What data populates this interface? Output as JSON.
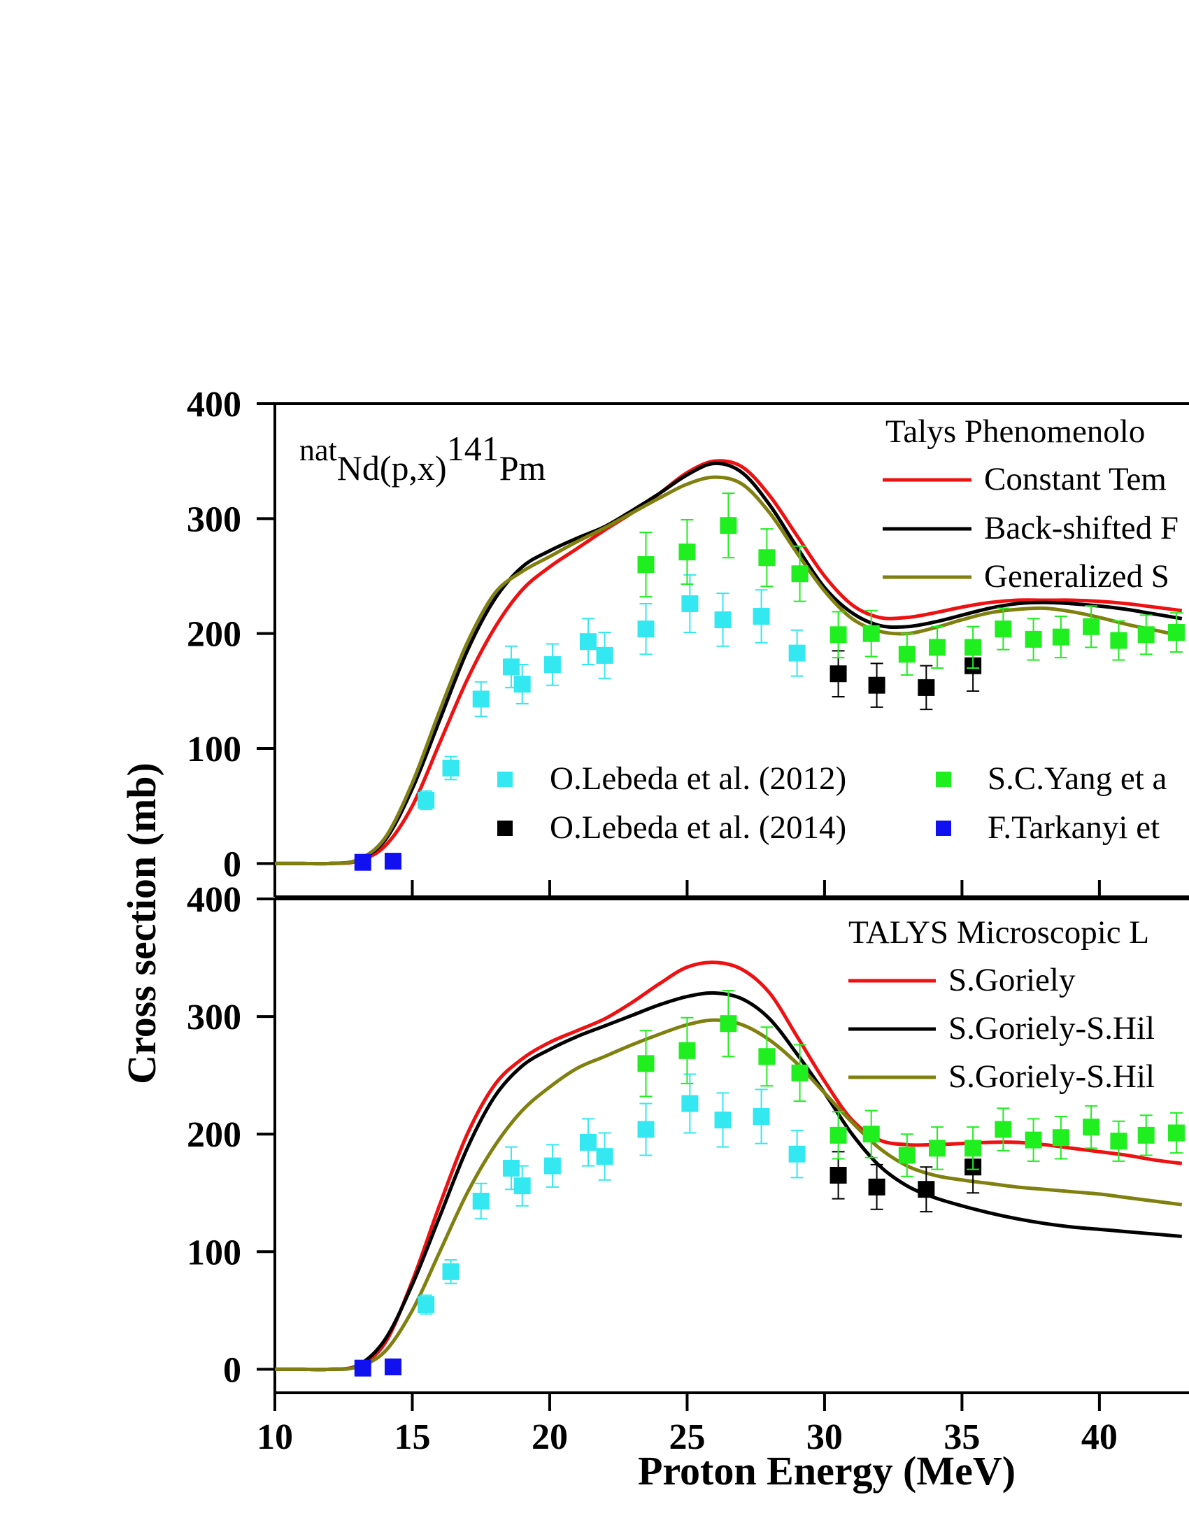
{
  "chart_data": [
    {
      "type": "line",
      "annotation": [
        "nat",
        "Nd(p,x)",
        "141",
        "Pm"
      ],
      "legend_title": "Talys Phenomenolo",
      "xlim": [
        10,
        43.26
      ],
      "xticks": [
        10,
        15,
        20,
        25,
        30,
        35,
        40
      ],
      "ylim": [
        -29,
        400
      ],
      "yticks": [
        0,
        100,
        200,
        300,
        400
      ],
      "x": [
        10,
        11,
        12,
        13,
        14,
        15,
        16,
        17,
        18,
        19,
        20,
        21,
        22,
        23,
        24,
        25,
        26,
        27,
        28,
        29,
        30,
        31,
        32,
        33,
        34,
        35,
        36,
        37,
        38,
        39,
        40,
        41,
        42,
        43
      ],
      "series": [
        {
          "name": "Constant Tem",
          "color": "#ee1111",
          "values": [
            0,
            0,
            0,
            2,
            15,
            50,
            105,
            160,
            205,
            238,
            258,
            274,
            290,
            305,
            322,
            340,
            350,
            345,
            320,
            285,
            250,
            225,
            214,
            214,
            218,
            223,
            227,
            229,
            229,
            229,
            228,
            226,
            223,
            220
          ]
        },
        {
          "name": "Back-shifted F",
          "color": "#000000",
          "values": [
            0,
            0,
            0,
            3,
            20,
            65,
            125,
            185,
            230,
            258,
            272,
            283,
            293,
            307,
            322,
            338,
            348,
            340,
            312,
            275,
            240,
            218,
            207,
            206,
            210,
            216,
            222,
            226,
            227,
            226,
            224,
            221,
            217,
            213
          ]
        },
        {
          "name": "Generalized S",
          "color": "#808010",
          "values": [
            0,
            0,
            0,
            3,
            22,
            70,
            133,
            192,
            235,
            254,
            267,
            280,
            292,
            305,
            318,
            330,
            336,
            330,
            305,
            270,
            237,
            213,
            202,
            200,
            205,
            212,
            218,
            221,
            222,
            219,
            214,
            208,
            203,
            198
          ]
        },
        {
          "name": "O.Lebeda et al. (2012)",
          "type": "scatter",
          "color": "#33e8f0",
          "x": [
            15.5,
            16.4,
            17.5,
            18.6,
            19.0,
            20.1,
            21.4,
            22.0,
            23.5,
            25.1,
            26.3,
            27.7,
            29.0
          ],
          "values": [
            55,
            83,
            143,
            171,
            156,
            173,
            193,
            181,
            204,
            226,
            212,
            215,
            183
          ],
          "errors": [
            8,
            10,
            15,
            18,
            17,
            18,
            20,
            20,
            22,
            25,
            23,
            23,
            20
          ]
        },
        {
          "name": "O.Lebeda et al. (2014)",
          "type": "scatter",
          "color": "#000000",
          "x": [
            30.5,
            31.9,
            33.7,
            35.4
          ],
          "values": [
            165,
            155,
            153,
            172
          ],
          "errors": [
            20,
            19,
            19,
            22
          ]
        },
        {
          "name": "S.C.Yang et a",
          "type": "scatter",
          "color": "#1fee1f",
          "x": [
            23.5,
            25.0,
            26.5,
            27.9,
            29.1,
            30.5,
            31.7,
            33.0,
            34.1,
            35.4,
            36.5,
            37.6,
            38.6,
            39.7,
            40.7,
            41.7,
            42.8
          ],
          "values": [
            260,
            271,
            294,
            266,
            252,
            199,
            200,
            182,
            188,
            188,
            204,
            195,
            197,
            206,
            194,
            199,
            201
          ],
          "errors": [
            28,
            28,
            28,
            25,
            24,
            20,
            20,
            18,
            18,
            18,
            18,
            18,
            18,
            18,
            17,
            17,
            17
          ]
        },
        {
          "name": "F.Tarkanyi et",
          "type": "scatter",
          "color": "#1010f0",
          "x": [
            13.2,
            14.3
          ],
          "values": [
            1,
            2
          ]
        }
      ]
    },
    {
      "type": "line",
      "legend_title": "TALYS Microscopic L",
      "x_label": "Proton Energy (MeV)",
      "y_label": "Cross section (mb)",
      "xlim": [
        10,
        43.26
      ],
      "xticks": [
        10,
        15,
        20,
        25,
        30,
        35,
        40
      ],
      "ylim": [
        -20,
        400
      ],
      "yticks": [
        0,
        100,
        200,
        300,
        400
      ],
      "x": [
        10,
        11,
        12,
        13,
        14,
        15,
        16,
        17,
        18,
        19,
        20,
        21,
        22,
        23,
        24,
        25,
        26,
        27,
        28,
        29,
        30,
        31,
        32,
        33,
        34,
        35,
        36,
        37,
        38,
        39,
        40,
        41,
        42,
        43
      ],
      "series": [
        {
          "name": "S.Goriely",
          "color": "#ee1111",
          "values": [
            0,
            0,
            0,
            3,
            22,
            75,
            140,
            200,
            242,
            264,
            278,
            288,
            298,
            312,
            328,
            342,
            346,
            340,
            320,
            283,
            245,
            212,
            195,
            191,
            191,
            192,
            193,
            193,
            191,
            188,
            185,
            182,
            178,
            175
          ]
        },
        {
          "name": "S.Goriely-S.Hil",
          "color": "#000000",
          "values": [
            0,
            0,
            0,
            3,
            25,
            72,
            130,
            188,
            232,
            258,
            272,
            283,
            292,
            301,
            310,
            317,
            320,
            315,
            298,
            268,
            235,
            200,
            173,
            156,
            146,
            139,
            133,
            128,
            124,
            121,
            119,
            117,
            115,
            113
          ]
        },
        {
          "name": "S.Goriely-S.Hil",
          "color": "#808010",
          "values": [
            0,
            0,
            0,
            2,
            15,
            50,
            100,
            150,
            190,
            220,
            240,
            256,
            266,
            276,
            285,
            293,
            297,
            293,
            280,
            260,
            235,
            210,
            188,
            173,
            165,
            161,
            158,
            155,
            153,
            151,
            149,
            146,
            143,
            140
          ]
        }
      ]
    }
  ]
}
